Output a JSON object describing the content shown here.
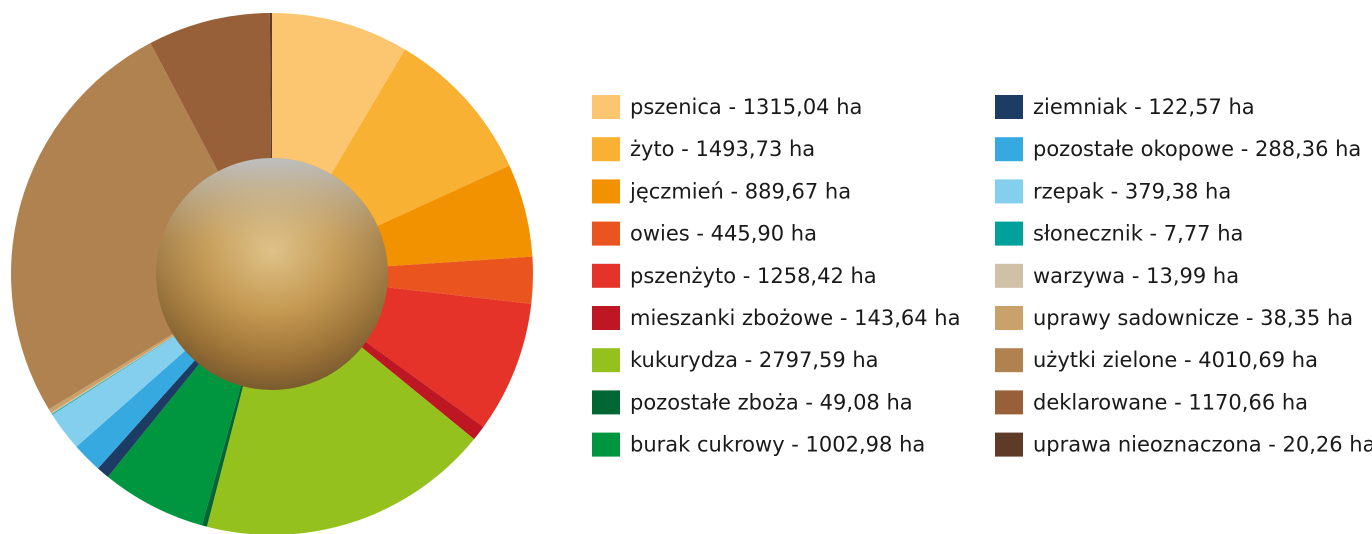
{
  "chart_data": {
    "type": "donut",
    "categories": [
      "pszenica - 1315,04 ha",
      "żyto - 1493,73 ha",
      "jęczmień - 889,67 ha",
      "owies - 445,90 ha",
      "pszenżyto - 1258,42 ha",
      "mieszanki zbożowe - 143,64 ha",
      "kukurydza - 2797,59 ha",
      "pozostałe zboża - 49,08 ha",
      "burak cukrowy - 1002,98 ha",
      "ziemniak - 122,57 ha",
      "pozostałe okopowe - 288,36 ha",
      "rzepak - 379,38 ha",
      "słonecznik - 7,77 ha",
      "warzywa - 13,99 ha",
      "uprawy sadownicze - 38,35 ha",
      "użytki zielone - 4010,69 ha",
      "deklarowane - 1170,66 ha",
      "uprawa nieoznaczona - 20,26 ha"
    ],
    "values": [
      1315.04,
      1493.73,
      889.67,
      445.9,
      1258.42,
      143.64,
      2797.59,
      49.08,
      1002.98,
      122.57,
      288.36,
      379.38,
      7.77,
      13.99,
      38.35,
      4010.69,
      1170.66,
      20.26
    ],
    "colors": [
      "#fbc66f",
      "#f8b133",
      "#f39200",
      "#e9541f",
      "#e5332a",
      "#be1622",
      "#95c11f",
      "#006633",
      "#009640",
      "#1d3c63",
      "#36a9e1",
      "#83cfed",
      "#00a19a",
      "#cfc1a6",
      "#c9a26b",
      "#b0824f",
      "#976038",
      "#5e3b27"
    ]
  }
}
